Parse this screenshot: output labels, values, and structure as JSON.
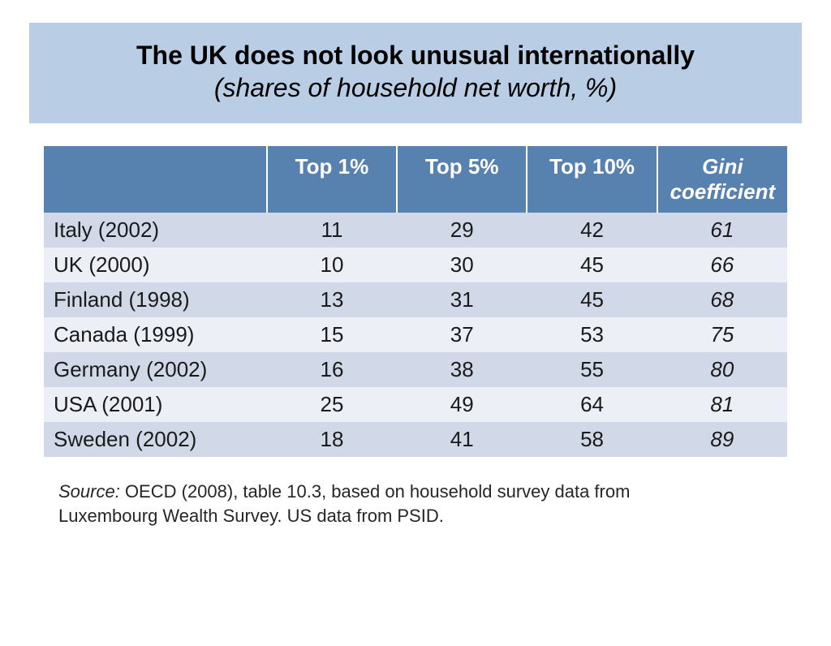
{
  "title": {
    "main": "The UK does not look unusual internationally",
    "sub": "(shares of household net worth, %)"
  },
  "table": {
    "type": "table",
    "header_bg": "#5781ae",
    "header_text_color": "#ffffff",
    "row_odd_bg": "#d1d9e8",
    "row_even_bg": "#eceff6",
    "header_fontsize": 26,
    "cell_fontsize": 26,
    "columns": [
      "",
      "Top 1%",
      "Top 5%",
      "Top 10%",
      "Gini coefficient"
    ],
    "gini_column_italic": true,
    "rows": [
      {
        "country": "Italy (2002)",
        "top1": 11,
        "top5": 29,
        "top10": 42,
        "gini": 61
      },
      {
        "country": "UK (2000)",
        "top1": 10,
        "top5": 30,
        "top10": 45,
        "gini": 66
      },
      {
        "country": "Finland (1998)",
        "top1": 13,
        "top5": 31,
        "top10": 45,
        "gini": 68
      },
      {
        "country": "Canada (1999)",
        "top1": 15,
        "top5": 37,
        "top10": 53,
        "gini": 75
      },
      {
        "country": "Germany (2002)",
        "top1": 16,
        "top5": 38,
        "top10": 55,
        "gini": 80
      },
      {
        "country": "USA (2001)",
        "top1": 25,
        "top5": 49,
        "top10": 64,
        "gini": 81
      },
      {
        "country": "Sweden (2002)",
        "top1": 18,
        "top5": 41,
        "top10": 58,
        "gini": 89
      }
    ]
  },
  "source": {
    "label": "Source:",
    "text": "  OECD (2008), table 10.3, based on household survey data from Luxembourg Wealth Survey.  US data from PSID."
  },
  "colors": {
    "banner_bg": "#b9cde4",
    "page_bg": "#ffffff",
    "text": "#1a1a1a"
  }
}
